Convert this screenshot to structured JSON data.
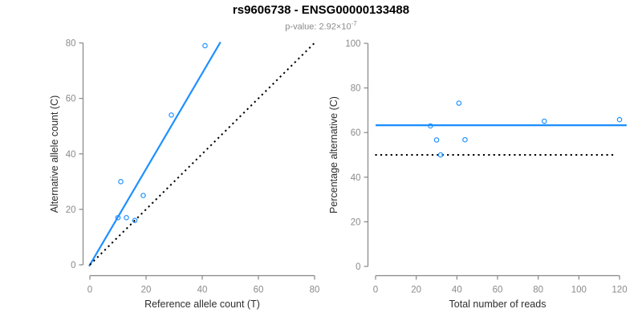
{
  "header": {
    "title": "rs9606738 - ENSG00000133488",
    "subtitle_prefix": "p-value: 2.92×10",
    "subtitle_exponent": "-7"
  },
  "colors": {
    "accent_blue": "#1E90FF",
    "reference_black": "#000000",
    "axis_gray": "#878787",
    "tick_label_gray": "#8a8a8a",
    "axis_title_gray": "#2e2e2e",
    "title_black": "#000000",
    "subtitle_gray": "#8a8a8a",
    "background": "#ffffff"
  },
  "chart_data": [
    {
      "type": "scatter",
      "panel": "left",
      "xlabel": "Reference allele count (T)",
      "ylabel": "Alternative allele count (C)",
      "xlim": [
        0,
        80
      ],
      "ylim": [
        0,
        80
      ],
      "xticks": [
        0,
        20,
        40,
        60,
        80
      ],
      "yticks": [
        0,
        20,
        40,
        60,
        80
      ],
      "points": [
        [
          10,
          17
        ],
        [
          11,
          30
        ],
        [
          13,
          17
        ],
        [
          16,
          16
        ],
        [
          19,
          25
        ],
        [
          29,
          54
        ],
        [
          41,
          79
        ]
      ],
      "lines": [
        {
          "kind": "fit-line",
          "slope": 1.727,
          "intercept": 0,
          "x_range": [
            -0.3,
            46.5
          ],
          "color": "#1E90FF",
          "dash": "solid",
          "width": 2.2
        },
        {
          "kind": "identity-line",
          "slope": 1,
          "intercept": 0,
          "x_range": [
            0,
            80.3
          ],
          "color": "#000000",
          "dash": "dotted",
          "width": 2
        }
      ],
      "grid": false,
      "legend": null
    },
    {
      "type": "scatter",
      "panel": "right",
      "xlabel": "Total number of reads",
      "ylabel": "Percentage alternative (C)",
      "xlim": [
        0,
        120
      ],
      "ylim": [
        0,
        100
      ],
      "xticks": [
        0,
        20,
        40,
        60,
        80,
        100,
        120
      ],
      "yticks": [
        0,
        20,
        40,
        60,
        80,
        100
      ],
      "points": [
        [
          27,
          63.0
        ],
        [
          30,
          56.7
        ],
        [
          32,
          50.0
        ],
        [
          41,
          73.2
        ],
        [
          44,
          56.8
        ],
        [
          83,
          65.1
        ],
        [
          120,
          65.8
        ]
      ],
      "lines": [
        {
          "kind": "mean-line",
          "hline": 63.3,
          "x_range": [
            0,
            123.5
          ],
          "color": "#1E90FF",
          "dash": "solid",
          "width": 2.4
        },
        {
          "kind": "null-line",
          "hline": 50,
          "x_range": [
            -0.2,
            118.5
          ],
          "color": "#000000",
          "dash": "dotted",
          "width": 2
        }
      ],
      "grid": false,
      "legend": null
    }
  ]
}
